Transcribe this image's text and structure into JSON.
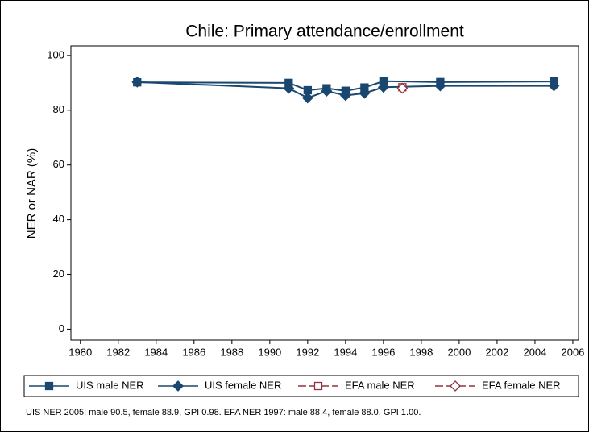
{
  "chart_data": {
    "type": "line",
    "title": "Chile: Primary attendance/enrollment",
    "y_label": "NER or NAR (%)",
    "note": "UIS NER 2005: male 90.5, female 88.9, GPI 0.98. EFA NER 1997: male 88.4, female 88.0, GPI 1.00.",
    "xlim": [
      1979.5,
      2006.3
    ],
    "xticks": [
      1980,
      1982,
      1984,
      1986,
      1988,
      1990,
      1992,
      1994,
      1996,
      1998,
      2000,
      2002,
      2004,
      2006
    ],
    "ylim": [
      -4,
      103.5
    ],
    "yticks": [
      0,
      20,
      40,
      60,
      80,
      100
    ],
    "grid": false,
    "legend": "bottom",
    "series": [
      {
        "name": "UIS male NER",
        "color": "#1a476f",
        "marker": "square",
        "hollow": false,
        "x": [
          1983,
          1991,
          1992,
          1993,
          1994,
          1995,
          1996,
          1999,
          2005
        ],
        "values": [
          90.2,
          90.0,
          87.3,
          88.0,
          87.1,
          88.3,
          90.6,
          90.3,
          90.5
        ]
      },
      {
        "name": "UIS female NER",
        "color": "#1a476f",
        "marker": "diamond",
        "hollow": false,
        "x": [
          1983,
          1991,
          1992,
          1993,
          1994,
          1995,
          1996,
          1999,
          2005
        ],
        "values": [
          90.3,
          88.0,
          84.5,
          87.0,
          85.4,
          86.2,
          88.4,
          88.9,
          88.9
        ]
      },
      {
        "name": "EFA male NER",
        "color": "#90353b",
        "marker": "square",
        "hollow": true,
        "x": [
          1997
        ],
        "values": [
          88.4
        ]
      },
      {
        "name": "EFA female NER",
        "color": "#90353b",
        "marker": "diamond",
        "hollow": true,
        "x": [
          1997
        ],
        "values": [
          88.0
        ]
      }
    ]
  }
}
